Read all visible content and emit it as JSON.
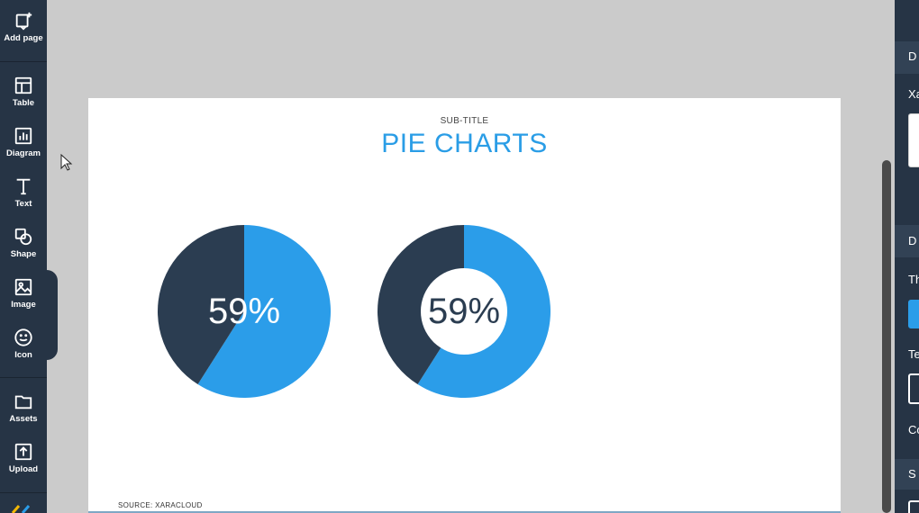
{
  "toolbar": {
    "items": [
      {
        "label": "Add page",
        "icon": "add-page-icon"
      },
      {
        "label": "Table",
        "icon": "table-icon"
      },
      {
        "label": "Diagram",
        "icon": "diagram-icon"
      },
      {
        "label": "Text",
        "icon": "text-icon"
      },
      {
        "label": "Shape",
        "icon": "shape-icon"
      },
      {
        "label": "Image",
        "icon": "image-icon"
      },
      {
        "label": "Icon",
        "icon": "smiley-icon"
      },
      {
        "label": "Assets",
        "icon": "folder-icon"
      },
      {
        "label": "Upload",
        "icon": "upload-icon"
      }
    ]
  },
  "slide": {
    "subtitle": "SUB-TITLE",
    "title": "PIE CHARTS",
    "source": "SOURCE: XARACLOUD"
  },
  "chart_data": [
    {
      "type": "pie",
      "values": [
        59,
        41
      ],
      "colors": [
        "#2b9de9",
        "#2b3d51"
      ],
      "center_label": "59%"
    },
    {
      "type": "donut",
      "values": [
        59,
        41
      ],
      "colors": [
        "#2b9de9",
        "#2b3d51"
      ],
      "center_label": "59%"
    }
  ],
  "right_panel": {
    "labels": [
      "D",
      "Xa",
      "D",
      "Th",
      "Te",
      "Co",
      "S"
    ]
  },
  "colors": {
    "toolbar_bg": "#263445",
    "accent": "#2a9de6",
    "dark_segment": "#2b3d51",
    "canvas_bg": "#cbcbcb"
  }
}
